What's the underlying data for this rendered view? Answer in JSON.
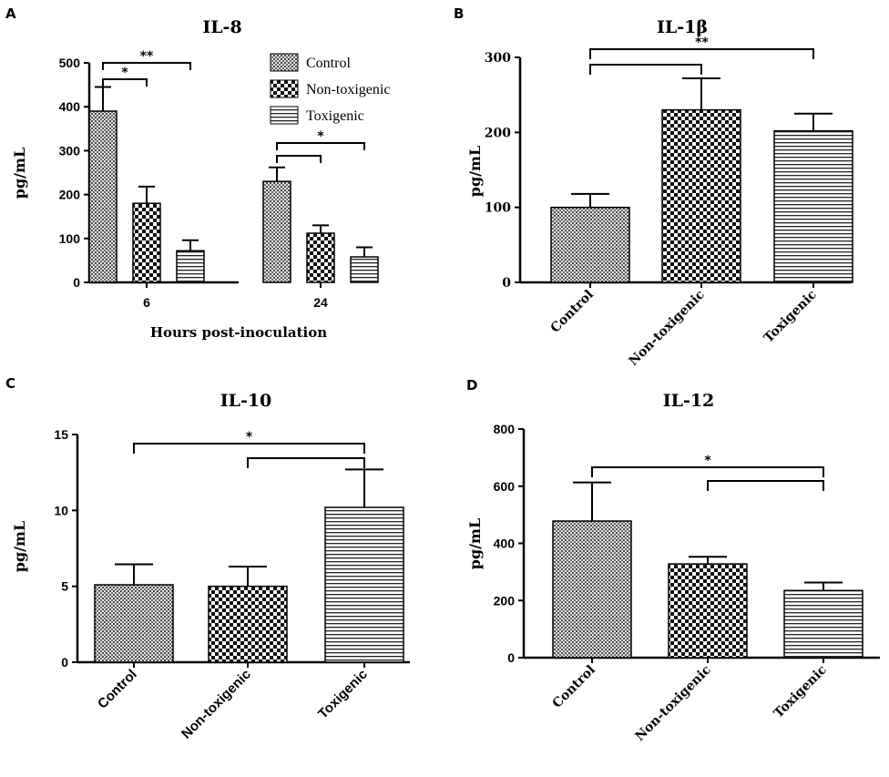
{
  "figure": {
    "width": 976,
    "height": 853
  },
  "colors": {
    "ink": "#000000",
    "background": "#ffffff"
  },
  "legend": {
    "entries": [
      {
        "name": "Control",
        "pattern": "control"
      },
      {
        "name": "Non-toxigenic",
        "pattern": "nontox"
      },
      {
        "name": "Toxigenic",
        "pattern": "tox"
      }
    ]
  },
  "chart_data": [
    {
      "panel": "A",
      "type": "bar",
      "title": "IL-8",
      "xlabel": "Hours post-inoculation",
      "ylabel": "pg/mL",
      "ylim": [
        0,
        500
      ],
      "yticks": [
        0,
        100,
        200,
        300,
        400,
        500
      ],
      "categories": [
        "6",
        "24"
      ],
      "series": [
        {
          "name": "Control",
          "values": [
            390,
            230
          ],
          "errors": [
            55,
            32
          ]
        },
        {
          "name": "Non-toxigenic",
          "values": [
            180,
            112
          ],
          "errors": [
            38,
            18
          ]
        },
        {
          "name": "Toxigenic",
          "values": [
            72,
            58
          ],
          "errors": [
            24,
            22
          ]
        }
      ],
      "significance": [
        {
          "group": "6",
          "from": "Control",
          "to": "Non-toxigenic",
          "label": "*"
        },
        {
          "group": "6",
          "from": "Control",
          "to": "Toxigenic",
          "label": "**"
        },
        {
          "group": "24",
          "from": "Control",
          "to": "Non-toxigenic",
          "label": ""
        },
        {
          "group": "24",
          "from": "Control",
          "to": "Toxigenic",
          "label": "*"
        }
      ],
      "legend_position": "top-right"
    },
    {
      "panel": "B",
      "type": "bar",
      "title": "IL-1β",
      "xlabel": "",
      "ylabel": "pg/mL",
      "ylim": [
        0,
        300
      ],
      "yticks": [
        0,
        100,
        200,
        300
      ],
      "categories": [
        "Control",
        "Non-toxigenic",
        "Toxigenic"
      ],
      "values": [
        100,
        230,
        202
      ],
      "errors": [
        18,
        42,
        23
      ],
      "significance": [
        {
          "from": "Control",
          "to": "Non-toxigenic",
          "label": ""
        },
        {
          "from": "Control",
          "to": "Toxigenic",
          "label": "**"
        }
      ]
    },
    {
      "panel": "C",
      "type": "bar",
      "title": "IL-10",
      "xlabel": "",
      "ylabel": "pg/mL",
      "ylim": [
        0,
        15
      ],
      "yticks": [
        0,
        5,
        10,
        15
      ],
      "categories": [
        "Control",
        "Non-toxigenic",
        "Toxigenic"
      ],
      "values": [
        5.1,
        5.0,
        10.2
      ],
      "errors": [
        1.35,
        1.3,
        2.5
      ],
      "significance": [
        {
          "from": "Control",
          "to": "Toxigenic",
          "label": "*"
        },
        {
          "from": "Non-toxigenic",
          "to": "Toxigenic",
          "label": ""
        }
      ]
    },
    {
      "panel": "D",
      "type": "bar",
      "title": "IL-12",
      "xlabel": "",
      "ylabel": "pg/mL",
      "ylim": [
        0,
        800
      ],
      "yticks": [
        0,
        200,
        400,
        600,
        800
      ],
      "categories": [
        "Control",
        "Non-toxigenic",
        "Toxigenic"
      ],
      "values": [
        478,
        328,
        235
      ],
      "errors": [
        135,
        25,
        28
      ],
      "significance": [
        {
          "from": "Control",
          "to": "Toxigenic",
          "label": "*"
        },
        {
          "from": "Non-toxigenic",
          "to": "Toxigenic",
          "label": ""
        }
      ]
    }
  ]
}
